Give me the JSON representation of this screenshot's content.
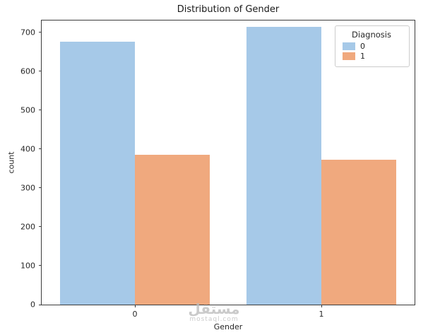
{
  "figure": {
    "watermark_main": "مستقل",
    "watermark_sub": "mostaql.com"
  },
  "chart_data": {
    "type": "bar",
    "title": "Distribution of Gender",
    "xlabel": "Gender",
    "ylabel": "count",
    "categories": [
      "0",
      "1"
    ],
    "series": [
      {
        "name": "0",
        "color": "#a6c9e8",
        "values": [
          675,
          713
        ]
      },
      {
        "name": "1",
        "color": "#f0a97e",
        "values": [
          385,
          373
        ]
      }
    ],
    "legend_title": "Diagnosis",
    "legend_position": "upper right",
    "ylim": [
      0,
      730
    ],
    "yticks": [
      0,
      100,
      200,
      300,
      400,
      500,
      600,
      700
    ],
    "grid": false
  }
}
